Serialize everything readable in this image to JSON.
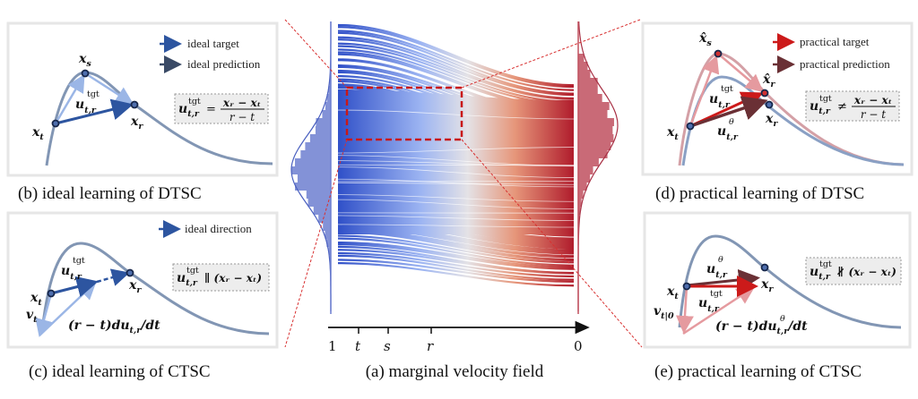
{
  "colors": {
    "blue_curve": "#8296b4",
    "ideal_target": "#2d55a0",
    "ideal_light": "#9bb6e6",
    "practical_target": "#cc1a1a",
    "practical_prediction": "#6a3035",
    "practical_light": "#e59a9f",
    "field_start": "#3050c8",
    "field_end": "#b01c2c",
    "zoom_box": "#cc1a1a"
  },
  "panel_a": {
    "caption": "(a) marginal velocity field",
    "ticks": {
      "one": "1",
      "t": "t",
      "s": "s",
      "r": "r",
      "zero": "0"
    }
  },
  "panel_b": {
    "caption": "(b) ideal learning of DTSC",
    "legend": [
      {
        "label": "ideal target",
        "icon": "arrow-right-icon"
      },
      {
        "label": "ideal prediction",
        "icon": "arrow-right-icon"
      }
    ],
    "labels": {
      "xs": "x",
      "xs_sub": "s",
      "xt": "x",
      "xt_sub": "t",
      "xr": "x",
      "xr_sub": "r",
      "u": "u",
      "u_sup": "tgt",
      "u_sub": "t,r"
    },
    "formula": {
      "lhs": "u",
      "lhs_sup": "tgt",
      "lhs_sub": "t,r",
      "op": "=",
      "num": "xᵣ − xₜ",
      "den": "r − t"
    }
  },
  "panel_c": {
    "caption": "(c) ideal learning of CTSC",
    "legend": [
      {
        "label": "ideal direction",
        "icon": "dashed-arrow-icon"
      }
    ],
    "labels": {
      "xt": "x",
      "xt_sub": "t",
      "xr": "x",
      "xr_sub": "r",
      "vt": "v",
      "vt_sub": "t",
      "u": "u",
      "u_sup": "tgt",
      "u_sub": "t,r",
      "deriv_pre": "(r − t)d",
      "deriv_u": "u",
      "deriv_sub": "t,r",
      "deriv_post": "/dt"
    },
    "formula": {
      "lhs": "u",
      "lhs_sup": "tgt",
      "lhs_sub": "t,r",
      "rhs": "∥ (xᵣ − xₜ)"
    }
  },
  "panel_d": {
    "caption": "(d) practical learning of DTSC",
    "legend": [
      {
        "label": "practical target",
        "icon": "arrow-right-icon"
      },
      {
        "label": "practical prediction",
        "icon": "arrow-right-icon"
      }
    ],
    "labels": {
      "xs_hat": "x̂",
      "xs_sub": "s",
      "xr_hat": "x̂",
      "xr_hat_sub": "r",
      "xt": "x",
      "xt_sub": "t",
      "xr": "x",
      "xr_sub": "r",
      "u": "u",
      "u_sup": "tgt",
      "u_sub": "t,r",
      "ut": "u",
      "ut_sup": "θ",
      "ut_sub": "t,r"
    },
    "formula": {
      "lhs": "u",
      "lhs_sup": "tgt",
      "lhs_sub": "t,r",
      "op": "≠",
      "num": "xᵣ − xₜ",
      "den": "r − t"
    }
  },
  "panel_e": {
    "caption": "(e) practical learning of CTSC",
    "labels": {
      "ut": "u",
      "ut_sup": "θ",
      "ut_sub": "t,r",
      "xt": "x",
      "xt_sub": "t",
      "xr": "x",
      "xr_sub": "r",
      "u": "u",
      "u_sup": "tgt",
      "u_sub": "t,r",
      "v": "v",
      "v_sub": "t|0",
      "deriv_pre": "(r − t)d",
      "deriv_u": "u",
      "deriv_sup": "θ",
      "deriv_sub": "t,r",
      "deriv_post": "/dt"
    },
    "formula": {
      "lhs": "u",
      "lhs_sup": "tgt",
      "lhs_sub": "t,r",
      "rhs": "∦ (xᵣ − xₜ)"
    }
  }
}
